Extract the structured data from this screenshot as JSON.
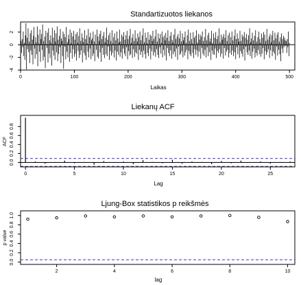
{
  "colors": {
    "line": "#000000",
    "dashed": "#3333cc",
    "background": "#ffffff"
  },
  "chart_data": [
    {
      "type": "line",
      "title": "Standartizuotos liekanos",
      "xlabel": "Laikas",
      "ylabel": "",
      "xlim": [
        0,
        510
      ],
      "ylim": [
        -4,
        3.6
      ],
      "xticks": [
        0,
        100,
        200,
        300,
        400,
        500
      ],
      "yticks": [
        -4,
        -2,
        0,
        2
      ],
      "n": 500,
      "reference_line": 0,
      "series": [
        {
          "name": "",
          "values": [
            0.6,
            -1.3,
            0.9,
            -0.4,
            2.1,
            -1.8,
            0.3,
            -2.4,
            1.5,
            3.4,
            -3.9,
            1.1,
            -0.7,
            2.6,
            -1.2,
            0.5,
            -2.9,
            1.8,
            -0.9,
            2.3,
            -1.6,
            0.8,
            -3.1,
            1.4,
            2.8,
            -0.6,
            -2.2,
            1.2,
            0.4,
            -1.5,
            2.9,
            -3.4,
            1.6,
            0.2,
            -1.1,
            2.4,
            -2.7,
            0.9,
            1.7,
            -0.8,
            3.2,
            -2.5,
            0.6,
            -1.9,
            1.3,
            -3.7,
            2.2,
            0.1,
            -0.5,
            1.9,
            -2.8,
            2.6,
            -1.4,
            0.7,
            -2.1,
            1.5,
            0.3,
            -3.3,
            2.7,
            -0.9,
            1.1,
            -1.7,
            2.3,
            -2.4,
            0.5,
            1.8,
            -1.2,
            2.9,
            -2.6,
            0.8,
            -1.5,
            1.4,
            -0.4,
            2.5,
            -2.9,
            1.0,
            0.6,
            -1.8,
            2.1,
            -3.8,
            1.7,
            -0.3,
            1.2,
            -2.3,
            2.8,
            -1.1,
            0.4,
            -2.0,
            1.6,
            0.9,
            -2.7,
            2.4,
            -1.3,
            0.2,
            1.9,
            -2.2,
            1.3,
            -0.7,
            2.2,
            -1.9,
            0.8,
            -1.4,
            1.7,
            -2.5,
            2.0,
            0.3,
            -1.0,
            1.4,
            -2.1,
            2.6,
            -1.6,
            0.6,
            -0.9,
            1.8,
            -2.8,
            1.1,
            0.4,
            -1.3,
            2.3,
            -1.7,
            0.9,
            -2.4,
            1.5,
            0.2,
            -1.1,
            2.5,
            -2.0,
            1.2,
            -0.6,
            1.9,
            -2.3,
            0.7,
            1.0,
            -1.8,
            2.1,
            -1.4,
            0.5,
            -2.6,
            1.6,
            0.1,
            -0.8,
            2.4,
            -1.9,
            1.3,
            -2.2,
            0.6,
            1.7,
            -1.2,
            2.2,
            -2.7,
            0.9,
            -0.5,
            1.4,
            -1.6,
            2.0,
            -2.1,
            0.4,
            1.1,
            -1.5,
            2.7,
            -1.8,
            0.8,
            -0.3,
            1.5,
            -2.4,
            1.9,
            -1.0,
            0.6,
            -1.7,
            2.3,
            -1.3,
            0.2,
            1.2,
            -2.0,
            1.8,
            -0.9,
            0.7,
            -2.5,
            2.1,
            -1.1,
            1.0,
            -1.6,
            0.4,
            2.4,
            -1.9,
            0.5,
            -1.2,
            1.6,
            -2.2,
            1.3,
            -0.6,
            2.0,
            -1.4,
            0.8,
            -1.8,
            1.5,
            -0.4,
            2.2,
            -2.3,
            0.9,
            -1.0,
            1.4,
            -1.7,
            2.5,
            -1.5,
            0.3,
            1.1,
            -2.1,
            1.7,
            -0.7,
            0.6,
            -1.9,
            2.3,
            -1.2,
            1.0,
            -1.4,
            0.5,
            1.8,
            -2.4,
            1.2,
            -0.8,
            2.1,
            -1.6,
            0.7,
            -1.1,
            1.5,
            -2.0,
            2.6,
            -0.9,
            0.4,
            -1.5,
            1.9,
            -2.2,
            1.1,
            0.2,
            -1.3,
            2.0,
            -1.8,
            0.8,
            -0.6,
            1.6,
            -2.3,
            1.4,
            -1.0,
            0.6,
            2.2,
            -1.7,
            0.9,
            -1.2,
            1.3,
            -1.9,
            2.4,
            -0.7,
            0.5,
            -1.6,
            1.8,
            -2.1,
            1.0,
            -0.4,
            1.7,
            -1.4,
            0.3,
            2.1,
            -2.0,
            1.2,
            -0.8,
            1.5,
            -1.7,
            0.7,
            1.9,
            -2.5,
            1.1,
            -0.5,
            2.3,
            -1.3,
            0.6,
            -1.8,
            1.4,
            -0.9,
            2.0,
            -2.2,
            0.8,
            0.4,
            -1.5,
            1.6,
            -1.1,
            2.5,
            -1.9,
            0.9,
            -0.6,
            1.3,
            -2.4,
            1.7,
            -0.3,
            1.0,
            -1.6,
            2.2,
            -1.4,
            0.5,
            -1.0,
            1.8,
            -2.0,
            0.7,
            1.2,
            -1.7,
            2.1,
            -1.2,
            0.3,
            -0.8,
            1.5,
            -2.3,
            2.4,
            -1.0,
            0.6,
            -1.5,
            1.9,
            -1.8,
            0.9,
            0.2,
            -1.3,
            2.0,
            -2.1,
            1.1,
            -0.7,
            1.4,
            -1.6,
            2.3,
            -0.9,
            0.4,
            -1.9,
            1.7,
            -1.1,
            0.8,
            1.6,
            -2.2,
            1.3,
            -0.5,
            2.1,
            -1.4,
            0.6,
            -1.7,
            1.2,
            -0.8,
            2.5,
            -2.0,
            0.7,
            -0.4,
            1.5,
            -1.8,
            1.9,
            -1.2,
            0.5,
            1.0,
            -2.4,
            2.2,
            -0.9,
            0.3,
            -1.5,
            1.8,
            -1.6,
            1.1,
            -0.6,
            2.0,
            -2.1,
            0.9,
            -1.0,
            1.4,
            -1.3,
            2.6,
            -0.7,
            0.4,
            -1.9,
            1.6,
            -1.4,
            0.8,
            1.3,
            -2.2,
            1.7,
            -0.5,
            1.1,
            -1.7,
            2.3,
            -1.1,
            0.6,
            -0.8,
            1.5,
            -2.0,
            1.9,
            -1.3,
            0.2,
            1.2,
            -1.6,
            2.1,
            -0.9,
            0.7,
            -1.8,
            1.4,
            -1.2,
            2.4,
            -2.3,
            0.9,
            -0.4,
            1.8,
            -1.5,
            1.0,
            0.5,
            -2.1,
            2.2,
            -1.0,
            0.6,
            -1.4,
            1.6,
            -1.9,
            1.3,
            -0.7,
            2.0,
            -2.5,
            1.1,
            -0.3,
            1.7,
            -1.2,
            0.8,
            -1.6,
            1.5,
            -0.9,
            2.6,
            -1.8,
            0.4,
            1.0,
            -2.2,
            1.9,
            -1.1,
            0.7,
            -0.6,
            1.4,
            -2.0,
            2.3,
            -1.3,
            0.5,
            -1.7,
            1.2,
            -0.8,
            2.1,
            -1.5,
            0.9,
            0.3,
            -1.9,
            1.8,
            -1.4,
            1.1,
            -0.5,
            2.0,
            -2.3,
            1.6,
            -1.0,
            0.6,
            -1.6,
            2.5,
            -1.2,
            0.8,
            -0.7,
            1.3,
            -2.1,
            1.7,
            -0.9,
            0.4,
            1.5,
            -1.8,
            2.2,
            -1.1,
            0.7,
            -1.4,
            1.9,
            -2.4,
            1.0,
            -0.3,
            1.6,
            -1.7,
            2.0,
            -0.8,
            0.5,
            -1.5,
            1.2,
            -2.6,
            1.8,
            -0.6,
            0.9,
            -1.3,
            1.4,
            -0.4,
            1.1,
            0.7,
            -0.2
          ]
        }
      ]
    },
    {
      "type": "bar",
      "title": "Liekanų ACF",
      "xlabel": "Lag",
      "ylabel": "ACF",
      "xlim": [
        -0.5,
        27.5
      ],
      "ylim": [
        -0.1,
        1.05
      ],
      "xticks": [
        0,
        5,
        10,
        15,
        20,
        25
      ],
      "yticks": [
        0.0,
        0.2,
        0.4,
        0.6,
        0.8
      ],
      "confidence_band": [
        -0.088,
        0.088
      ],
      "series": [
        {
          "name": "",
          "x": [
            0,
            1,
            2,
            3,
            4,
            5,
            6,
            7,
            8,
            9,
            10,
            11,
            12,
            13,
            14,
            15,
            16,
            17,
            18,
            19,
            20,
            21,
            22,
            23,
            24,
            25,
            26,
            27
          ],
          "values": [
            1.0,
            0.02,
            -0.03,
            0.01,
            0.04,
            -0.02,
            0.01,
            -0.05,
            0.03,
            -0.01,
            0.02,
            -0.04,
            0.05,
            0.01,
            -0.02,
            0.06,
            -0.03,
            0.02,
            0.01,
            -0.04,
            0.03,
            -0.02,
            0.04,
            -0.01,
            0.02,
            -0.03,
            0.01,
            0.02
          ]
        }
      ]
    },
    {
      "type": "scatter",
      "title": "Ljung-Box statistikos p reikšmės",
      "xlabel": "lag",
      "ylabel": "p value",
      "xlim": [
        0.75,
        10.25
      ],
      "ylim": [
        -0.05,
        1.1
      ],
      "xticks": [
        2,
        4,
        6,
        8,
        10
      ],
      "yticks": [
        0.0,
        0.2,
        0.4,
        0.6,
        0.8,
        1.0
      ],
      "reference_line": 0.05,
      "series": [
        {
          "name": "",
          "x": [
            1,
            2,
            3,
            4,
            5,
            6,
            7,
            8,
            9,
            10
          ],
          "values": [
            0.92,
            0.95,
            0.99,
            0.97,
            0.99,
            0.97,
            0.99,
            1.0,
            0.96,
            0.87
          ]
        }
      ]
    }
  ]
}
